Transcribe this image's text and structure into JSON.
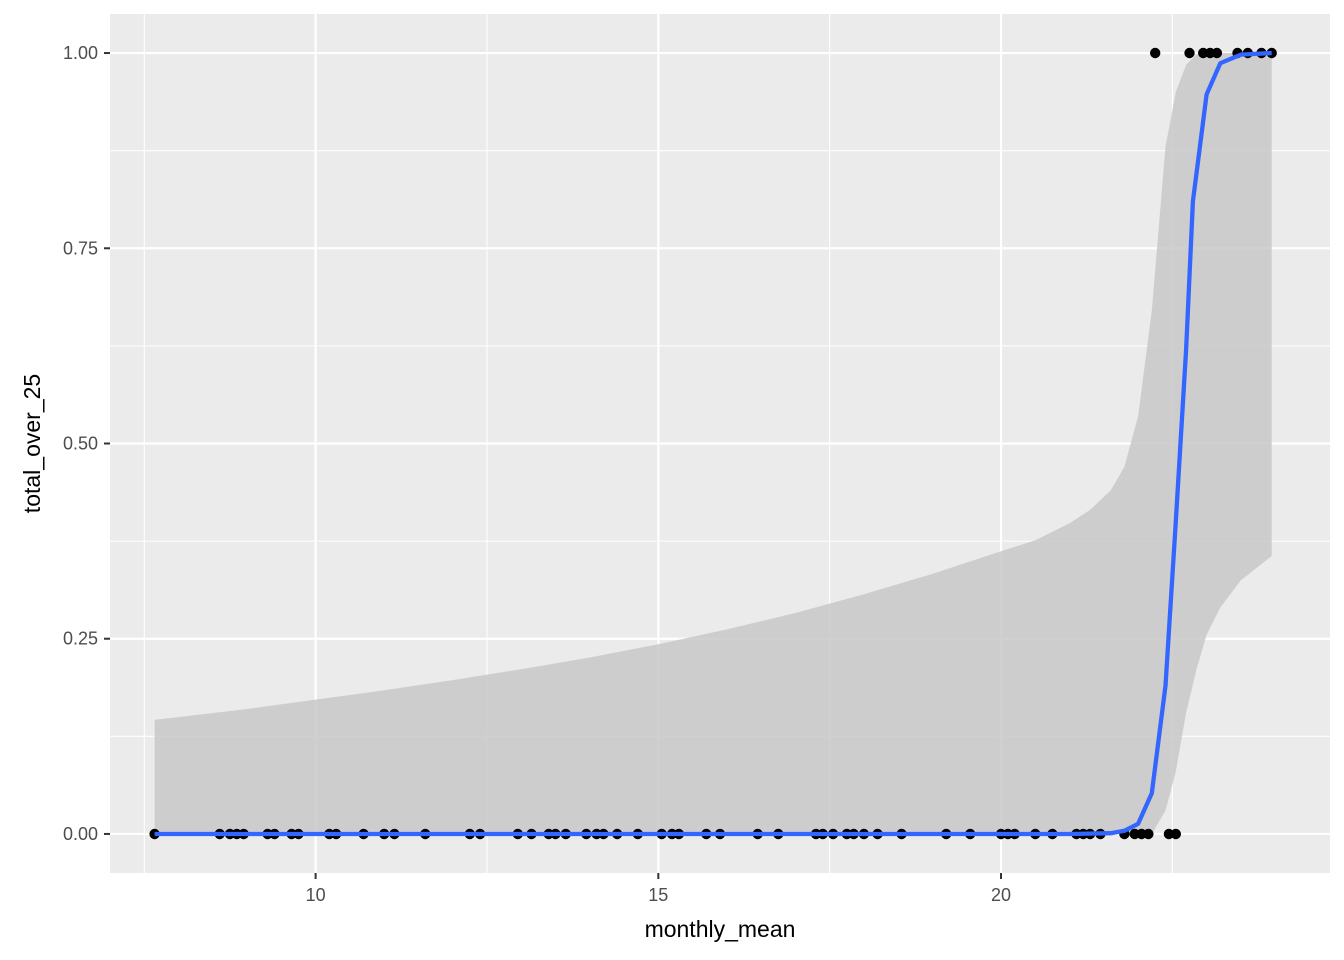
{
  "chart_data": {
    "type": "scatter",
    "title": "",
    "xlabel": "monthly_mean",
    "ylabel": "total_over_25",
    "xlim": [
      7.0,
      24.8
    ],
    "ylim": [
      -0.05,
      1.05
    ],
    "x_ticks": [
      10,
      15,
      20
    ],
    "x_tick_labels": [
      "10",
      "15",
      "20"
    ],
    "y_ticks": [
      0,
      0.25,
      0.5,
      0.75,
      1.0
    ],
    "y_tick_labels": [
      "0.00",
      "0.25",
      "0.50",
      "0.75",
      "1.00"
    ],
    "grid": true,
    "legend": "none",
    "colors": {
      "panel": "#ebebeb",
      "grid_major": "#ffffff",
      "point": "#000000",
      "fit_line": "#3366ff",
      "ribbon": "#c8c8c8"
    },
    "points": [
      {
        "x": 7.65,
        "y": 0
      },
      {
        "x": 8.6,
        "y": 0
      },
      {
        "x": 8.75,
        "y": 0
      },
      {
        "x": 8.85,
        "y": 0
      },
      {
        "x": 8.95,
        "y": 0
      },
      {
        "x": 9.3,
        "y": 0
      },
      {
        "x": 9.4,
        "y": 0
      },
      {
        "x": 9.65,
        "y": 0
      },
      {
        "x": 9.75,
        "y": 0
      },
      {
        "x": 10.2,
        "y": 0
      },
      {
        "x": 10.3,
        "y": 0
      },
      {
        "x": 10.7,
        "y": 0
      },
      {
        "x": 11.0,
        "y": 0
      },
      {
        "x": 11.15,
        "y": 0
      },
      {
        "x": 11.6,
        "y": 0
      },
      {
        "x": 12.25,
        "y": 0
      },
      {
        "x": 12.4,
        "y": 0
      },
      {
        "x": 12.95,
        "y": 0
      },
      {
        "x": 13.15,
        "y": 0
      },
      {
        "x": 13.4,
        "y": 0
      },
      {
        "x": 13.5,
        "y": 0
      },
      {
        "x": 13.65,
        "y": 0
      },
      {
        "x": 13.95,
        "y": 0
      },
      {
        "x": 14.1,
        "y": 0
      },
      {
        "x": 14.2,
        "y": 0
      },
      {
        "x": 14.4,
        "y": 0
      },
      {
        "x": 14.7,
        "y": 0
      },
      {
        "x": 15.05,
        "y": 0
      },
      {
        "x": 15.2,
        "y": 0
      },
      {
        "x": 15.3,
        "y": 0
      },
      {
        "x": 15.7,
        "y": 0
      },
      {
        "x": 15.9,
        "y": 0
      },
      {
        "x": 16.45,
        "y": 0
      },
      {
        "x": 16.75,
        "y": 0
      },
      {
        "x": 17.3,
        "y": 0
      },
      {
        "x": 17.4,
        "y": 0
      },
      {
        "x": 17.55,
        "y": 0
      },
      {
        "x": 17.75,
        "y": 0
      },
      {
        "x": 17.85,
        "y": 0
      },
      {
        "x": 18.0,
        "y": 0
      },
      {
        "x": 18.2,
        "y": 0
      },
      {
        "x": 18.55,
        "y": 0
      },
      {
        "x": 19.2,
        "y": 0
      },
      {
        "x": 19.55,
        "y": 0
      },
      {
        "x": 20.0,
        "y": 0
      },
      {
        "x": 20.1,
        "y": 0
      },
      {
        "x": 20.2,
        "y": 0
      },
      {
        "x": 20.5,
        "y": 0
      },
      {
        "x": 20.75,
        "y": 0
      },
      {
        "x": 21.1,
        "y": 0
      },
      {
        "x": 21.2,
        "y": 0
      },
      {
        "x": 21.3,
        "y": 0
      },
      {
        "x": 21.45,
        "y": 0
      },
      {
        "x": 21.8,
        "y": 0
      },
      {
        "x": 21.95,
        "y": 0
      },
      {
        "x": 22.05,
        "y": 0
      },
      {
        "x": 22.15,
        "y": 0
      },
      {
        "x": 22.45,
        "y": 0
      },
      {
        "x": 22.55,
        "y": 0
      },
      {
        "x": 22.25,
        "y": 1
      },
      {
        "x": 22.75,
        "y": 1
      },
      {
        "x": 22.95,
        "y": 1
      },
      {
        "x": 23.05,
        "y": 1
      },
      {
        "x": 23.15,
        "y": 1
      },
      {
        "x": 23.45,
        "y": 1
      },
      {
        "x": 23.6,
        "y": 1
      },
      {
        "x": 23.8,
        "y": 1
      },
      {
        "x": 23.95,
        "y": 1
      }
    ],
    "fit_line": [
      {
        "x": 7.65,
        "y": 0
      },
      {
        "x": 21.0,
        "y": 0
      },
      {
        "x": 21.6,
        "y": 0.001
      },
      {
        "x": 21.8,
        "y": 0.004
      },
      {
        "x": 22.0,
        "y": 0.013
      },
      {
        "x": 22.2,
        "y": 0.052
      },
      {
        "x": 22.4,
        "y": 0.19
      },
      {
        "x": 22.55,
        "y": 0.4
      },
      {
        "x": 22.7,
        "y": 0.62
      },
      {
        "x": 22.8,
        "y": 0.81
      },
      {
        "x": 23.0,
        "y": 0.947
      },
      {
        "x": 23.2,
        "y": 0.987
      },
      {
        "x": 23.5,
        "y": 0.998
      },
      {
        "x": 23.95,
        "y": 1.0
      }
    ],
    "ribbon": [
      {
        "x": 7.65,
        "lo": 0,
        "hi": 0.146
      },
      {
        "x": 9.0,
        "lo": 0,
        "hi": 0.16
      },
      {
        "x": 10.0,
        "lo": 0,
        "hi": 0.172
      },
      {
        "x": 11.0,
        "lo": 0,
        "hi": 0.184
      },
      {
        "x": 12.0,
        "lo": 0,
        "hi": 0.197
      },
      {
        "x": 13.0,
        "lo": 0,
        "hi": 0.211
      },
      {
        "x": 14.0,
        "lo": 0,
        "hi": 0.226
      },
      {
        "x": 15.0,
        "lo": 0,
        "hi": 0.243
      },
      {
        "x": 16.0,
        "lo": 0,
        "hi": 0.262
      },
      {
        "x": 17.0,
        "lo": 0,
        "hi": 0.283
      },
      {
        "x": 18.0,
        "lo": 0,
        "hi": 0.307
      },
      {
        "x": 19.0,
        "lo": 0,
        "hi": 0.333
      },
      {
        "x": 20.0,
        "lo": 0,
        "hi": 0.362
      },
      {
        "x": 20.5,
        "lo": 0,
        "hi": 0.376
      },
      {
        "x": 21.0,
        "lo": 0,
        "hi": 0.398
      },
      {
        "x": 21.3,
        "lo": 0,
        "hi": 0.415
      },
      {
        "x": 21.6,
        "lo": 0,
        "hi": 0.44
      },
      {
        "x": 21.8,
        "lo": 0,
        "hi": 0.47
      },
      {
        "x": 22.0,
        "lo": 0,
        "hi": 0.535
      },
      {
        "x": 22.2,
        "lo": 0,
        "hi": 0.67
      },
      {
        "x": 22.4,
        "lo": 0.03,
        "hi": 0.88
      },
      {
        "x": 22.55,
        "lo": 0.08,
        "hi": 0.95
      },
      {
        "x": 22.7,
        "lo": 0.155,
        "hi": 0.985
      },
      {
        "x": 22.85,
        "lo": 0.21,
        "hi": 0.998
      },
      {
        "x": 23.0,
        "lo": 0.255,
        "hi": 1.0
      },
      {
        "x": 23.2,
        "lo": 0.29,
        "hi": 1.0
      },
      {
        "x": 23.5,
        "lo": 0.325,
        "hi": 1.0
      },
      {
        "x": 23.95,
        "lo": 0.356,
        "hi": 1.0
      }
    ]
  }
}
